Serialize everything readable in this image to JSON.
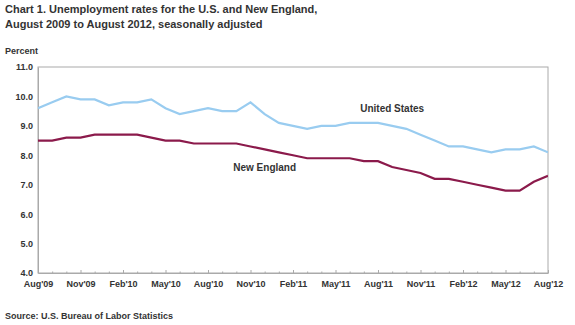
{
  "chart_data": {
    "type": "line",
    "title": "Chart 1. Unemployment rates for the U.S. and New England,",
    "subtitle": "August 2009 to August 2012, seasonally adjusted",
    "y_label": "Percent",
    "source": "Source: U.S. Bureau of Labor Statistics",
    "categories": [
      "Aug'09",
      null,
      null,
      "Nov'09",
      null,
      null,
      "Feb'10",
      null,
      null,
      "May'10",
      null,
      null,
      "Aug'10",
      null,
      null,
      "Nov'10",
      null,
      null,
      "Feb'11",
      null,
      null,
      "May'11",
      null,
      null,
      "Aug'11",
      null,
      null,
      "Nov'11",
      null,
      null,
      "Feb'12",
      null,
      null,
      "May'12",
      null,
      null,
      "Aug'12"
    ],
    "series": [
      {
        "name": "United States",
        "color": "#99ccf0",
        "values": [
          9.6,
          9.8,
          10.0,
          9.9,
          9.9,
          9.7,
          9.8,
          9.8,
          9.9,
          9.6,
          9.4,
          9.5,
          9.6,
          9.5,
          9.5,
          9.8,
          9.4,
          9.1,
          9.0,
          8.9,
          9.0,
          9.0,
          9.1,
          9.1,
          9.1,
          9.0,
          8.9,
          8.7,
          8.5,
          8.3,
          8.3,
          8.2,
          8.1,
          8.2,
          8.2,
          8.3,
          8.1
        ]
      },
      {
        "name": "New England",
        "color": "#8b1a4b",
        "values": [
          8.5,
          8.5,
          8.6,
          8.6,
          8.7,
          8.7,
          8.7,
          8.7,
          8.6,
          8.5,
          8.5,
          8.4,
          8.4,
          8.4,
          8.4,
          8.3,
          8.2,
          8.1,
          8.0,
          7.9,
          7.9,
          7.9,
          7.9,
          7.8,
          7.8,
          7.6,
          7.5,
          7.4,
          7.2,
          7.2,
          7.1,
          7.0,
          6.9,
          6.8,
          6.8,
          7.1,
          7.3
        ]
      }
    ],
    "ylim": [
      4,
      11
    ],
    "yticks": [
      {
        "value": 4,
        "label": "4.0"
      },
      {
        "value": 5,
        "label": "5.0"
      },
      {
        "value": 6,
        "label": "6.0"
      },
      {
        "value": 7,
        "label": "7.0"
      },
      {
        "value": 8,
        "label": "8.0"
      },
      {
        "value": 9,
        "label": "9.0"
      },
      {
        "value": 10,
        "label": "10.0"
      },
      {
        "value": 11,
        "label": "11.0"
      }
    ],
    "grid": false
  }
}
